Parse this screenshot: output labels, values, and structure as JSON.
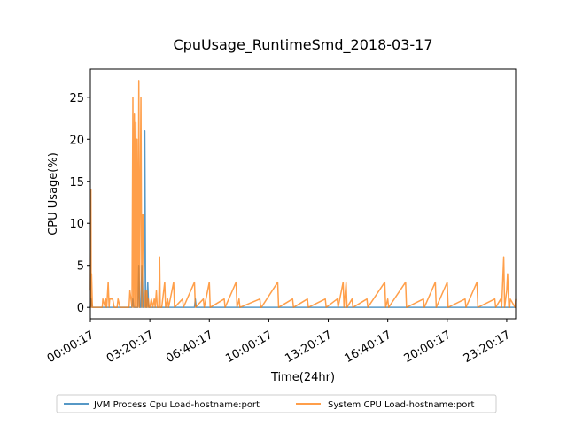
{
  "chart_data": {
    "type": "line",
    "title": "CpuUsage_RuntimeSmd_2018-03-17",
    "xlabel": "Time(24hr)",
    "ylabel": "CPU Usage(%)",
    "xlim": [
      "00:00:17",
      "23:50:17"
    ],
    "ylim": [
      -1.35,
      28.35
    ],
    "x_tick_labels": [
      "00:00:17",
      "03:20:17",
      "06:40:17",
      "10:00:17",
      "13:20:17",
      "16:40:17",
      "20:00:17",
      "23:20:17"
    ],
    "y_tick_labels": [
      "0",
      "5",
      "10",
      "15",
      "20",
      "25"
    ],
    "grid": false,
    "legend_position": "bottom-center",
    "colors": {
      "jvm": "#1f77b4",
      "system": "#ff7f0e",
      "overlap": "#8d5b2e"
    },
    "series": [
      {
        "name": "JVM Process Cpu Load-hostname:port",
        "color": "#1f77b4",
        "x": [
          "00:00:17",
          "00:03:17",
          "00:06:17",
          "00:10:17",
          "02:20:17",
          "02:23:17",
          "02:26:17",
          "02:40:17",
          "02:43:17",
          "02:46:17",
          "02:50:17",
          "02:53:17",
          "02:56:17",
          "03:00:17",
          "03:03:17",
          "03:06:17",
          "03:10:17",
          "03:13:17",
          "03:16:17",
          "05:50:17",
          "05:53:17",
          "05:56:17",
          "23:48:17",
          "23:50:17"
        ],
        "values": [
          0,
          1,
          0,
          0,
          0,
          1,
          0,
          0,
          5,
          0,
          0,
          5,
          0,
          0,
          21,
          0,
          0,
          3,
          0,
          0,
          1,
          0,
          0,
          0
        ]
      },
      {
        "name": "System CPU Load-hostname:port",
        "color": "#ff7f0e",
        "x": [
          "00:00:17",
          "00:02:17",
          "00:03:17",
          "00:04:17",
          "00:07:17",
          "00:10:17",
          "00:40:17",
          "00:42:17",
          "00:50:17",
          "00:52:17",
          "00:55:17",
          "01:00:17",
          "01:03:17",
          "01:05:17",
          "01:10:17",
          "01:15:17",
          "01:20:17",
          "01:30:17",
          "01:33:17",
          "01:40:17",
          "02:10:17",
          "02:13:17",
          "02:20:17",
          "02:23:17",
          "02:25:17",
          "02:28:17",
          "02:30:17",
          "02:33:17",
          "02:35:17",
          "02:37:17",
          "02:40:17",
          "02:43:17",
          "02:45:17",
          "02:50:17",
          "02:53:17",
          "02:55:17",
          "02:58:17",
          "03:00:17",
          "03:03:17",
          "03:05:17",
          "03:08:17",
          "03:10:17",
          "03:13:17",
          "03:15:17",
          "03:18:17",
          "03:20:17",
          "03:25:17",
          "03:30:17",
          "03:35:17",
          "03:38:17",
          "03:42:17",
          "03:45:17",
          "03:50:17",
          "03:53:17",
          "03:55:17",
          "04:00:17",
          "04:10:17",
          "04:13:17",
          "04:20:17",
          "04:23:17",
          "04:40:17",
          "04:43:17",
          "05:10:17",
          "05:13:17",
          "05:50:17",
          "05:53:17",
          "06:20:17",
          "06:23:17",
          "06:40:17",
          "06:43:17",
          "07:30:17",
          "07:33:17",
          "08:10:17",
          "08:13:17",
          "08:20:17",
          "08:23:17",
          "09:30:17",
          "09:33:17",
          "09:35:17",
          "10:30:17",
          "10:33:17",
          "11:20:17",
          "11:23:17",
          "12:10:17",
          "12:13:17",
          "13:10:17",
          "13:13:17",
          "13:50:17",
          "13:53:17",
          "14:10:17",
          "14:13:17",
          "14:20:17",
          "14:23:17",
          "14:40:17",
          "14:43:17",
          "15:30:17",
          "15:33:17",
          "16:30:17",
          "16:33:17",
          "16:40:17",
          "16:43:17",
          "17:40:17",
          "17:43:17",
          "18:40:17",
          "18:43:17",
          "19:20:17",
          "19:23:17",
          "20:00:17",
          "20:03:17",
          "21:00:17",
          "21:03:17",
          "21:40:17",
          "21:43:17",
          "22:40:17",
          "22:43:17",
          "23:00:17",
          "23:03:17",
          "23:10:17",
          "23:13:17",
          "23:20:17",
          "23:23:17",
          "23:25:17",
          "23:27:17",
          "23:30:17",
          "23:32:17",
          "23:48:17",
          "23:50:17"
        ],
        "values": [
          2,
          14,
          0,
          4,
          0,
          0,
          0,
          1,
          0,
          1,
          0,
          3,
          0,
          1,
          1,
          1,
          0,
          0,
          1,
          0,
          0,
          2,
          0,
          25,
          0,
          23,
          0,
          22,
          0,
          20,
          0,
          27,
          0,
          25,
          0,
          11,
          11,
          0,
          0,
          2,
          0,
          2,
          0,
          1,
          0,
          0,
          1,
          0,
          1,
          0,
          2,
          0,
          0,
          6,
          0,
          0,
          3,
          0,
          1,
          0,
          3,
          0,
          1,
          0,
          3,
          0,
          1,
          0,
          3,
          0,
          1,
          0,
          3,
          0,
          1,
          0,
          1,
          0,
          0,
          3,
          0,
          1,
          0,
          1,
          0,
          1,
          0,
          1,
          0,
          3,
          0,
          3,
          0,
          1,
          0,
          1,
          0,
          3,
          0,
          1,
          0,
          3,
          0,
          1,
          0,
          3,
          0,
          3,
          0,
          1,
          0,
          3,
          0,
          1,
          0,
          1,
          0,
          6,
          0,
          2,
          4,
          2,
          0,
          0,
          1,
          0,
          1
        ]
      }
    ]
  }
}
